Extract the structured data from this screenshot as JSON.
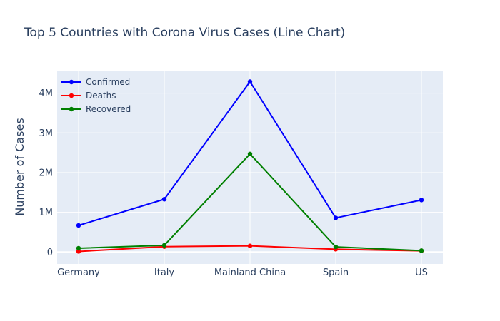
{
  "chart_data": {
    "type": "line",
    "title": "Top 5 Countries with Corona Virus Cases (Line Chart)",
    "xlabel": "",
    "ylabel": "Number of Cases",
    "categories": [
      "Germany",
      "Italy",
      "Mainland China",
      "Spain",
      "US"
    ],
    "ylim": [
      -300000,
      4550000
    ],
    "yticks": [
      0,
      1000000,
      2000000,
      3000000,
      4000000
    ],
    "ytick_labels": [
      "0",
      "1M",
      "2M",
      "3M",
      "4M"
    ],
    "grid": true,
    "legend_position": "top-left",
    "series": [
      {
        "name": "Confirmed",
        "color": "#0000ff",
        "values": [
          670000,
          1330000,
          4290000,
          860000,
          1310000
        ]
      },
      {
        "name": "Deaths",
        "color": "#ff0000",
        "values": [
          15000,
          135000,
          155000,
          70000,
          30000
        ]
      },
      {
        "name": "Recovered",
        "color": "#008000",
        "values": [
          95000,
          170000,
          2470000,
          130000,
          35000
        ]
      }
    ]
  }
}
